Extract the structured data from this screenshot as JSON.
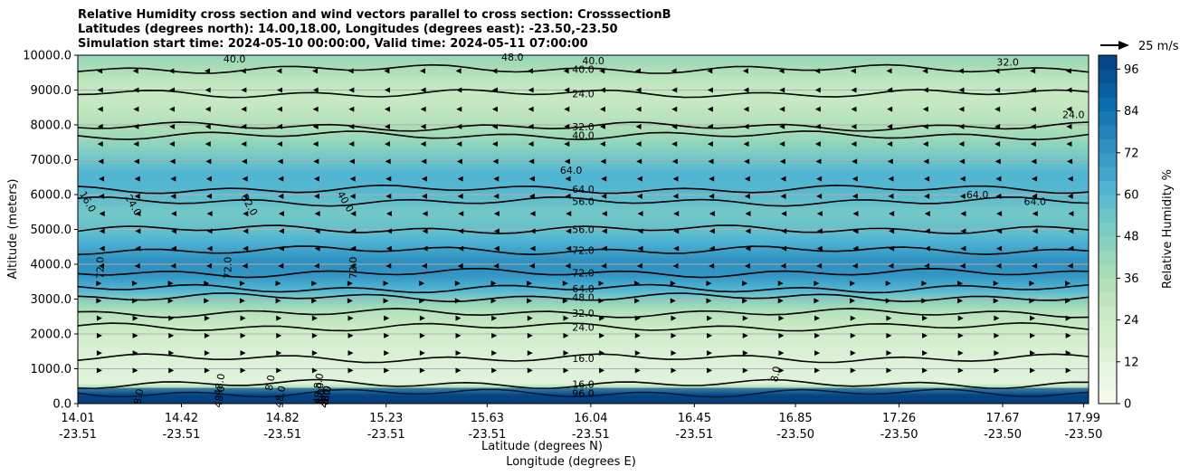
{
  "chart_data": {
    "type": "heatmap",
    "title_lines": [
      "Relative Humidity cross section and wind vectors parallel to cross section: CrosssectionB",
      "Latitudes (degrees north): 14.00,18.00, Longitudes (degrees east): -23.50,-23.50",
      "Simulation start time: 2024-05-10 00:00:00, Valid time: 2024-05-11 07:00:00"
    ],
    "ylabel": "Altitude (meters)",
    "xlabel": "Latitude (degrees N)",
    "xlabel2": "Longitude (degrees E)",
    "ylim": [
      0,
      10000
    ],
    "y_ticks": [
      "0.0",
      "1000.0",
      "2000.0",
      "3000.0",
      "4000.0",
      "5000.0",
      "6000.0",
      "7000.0",
      "8000.0",
      "9000.0",
      "10000.0"
    ],
    "x_ticks_lat": [
      "14.01",
      "14.42",
      "14.82",
      "15.23",
      "15.63",
      "16.04",
      "16.45",
      "16.85",
      "17.26",
      "17.67",
      "17.99"
    ],
    "x_ticks_lon": [
      "-23.51",
      "-23.51",
      "-23.51",
      "-23.51",
      "-23.51",
      "-23.51",
      "-23.51",
      "-23.50",
      "-23.50",
      "-23.50",
      "-23.50"
    ],
    "x_tick_positions": [
      0,
      0.1025,
      0.2025,
      0.305,
      0.405,
      0.5075,
      0.61,
      0.71,
      0.8125,
      0.915,
      0.995
    ],
    "colorbar": {
      "label": "Relative Humidity %",
      "ticks": [
        "0",
        "12",
        "24",
        "36",
        "48",
        "60",
        "72",
        "84",
        "96"
      ],
      "tick_values": [
        0,
        12,
        24,
        36,
        48,
        60,
        72,
        84,
        96
      ],
      "range": [
        0,
        100
      ],
      "colors": [
        "#f7fcf0",
        "#e0f3db",
        "#ccebc5",
        "#a8ddb5",
        "#7bccc4",
        "#4eb3d3",
        "#2b8cbe",
        "#0868ac",
        "#084081"
      ]
    },
    "rh_profile": [
      {
        "alt": 0,
        "rh": 96
      },
      {
        "alt": 250,
        "rh": 92
      },
      {
        "alt": 600,
        "rh": 12
      },
      {
        "alt": 1000,
        "rh": 14
      },
      {
        "alt": 1600,
        "rh": 17
      },
      {
        "alt": 2100,
        "rh": 24
      },
      {
        "alt": 2600,
        "rh": 32
      },
      {
        "alt": 3000,
        "rh": 48
      },
      {
        "alt": 3300,
        "rh": 62
      },
      {
        "alt": 3700,
        "rh": 72
      },
      {
        "alt": 4100,
        "rh": 74
      },
      {
        "alt": 4500,
        "rh": 66
      },
      {
        "alt": 5000,
        "rh": 56
      },
      {
        "alt": 5500,
        "rh": 52
      },
      {
        "alt": 6100,
        "rh": 60
      },
      {
        "alt": 6600,
        "rh": 62
      },
      {
        "alt": 7200,
        "rh": 50
      },
      {
        "alt": 7700,
        "rh": 40
      },
      {
        "alt": 8200,
        "rh": 32
      },
      {
        "alt": 8800,
        "rh": 26
      },
      {
        "alt": 9300,
        "rh": 30
      },
      {
        "alt": 9700,
        "rh": 38
      },
      {
        "alt": 10000,
        "rh": 42
      }
    ],
    "contour_levels": [
      {
        "alt": 300,
        "label": "96.0"
      },
      {
        "alt": 560,
        "label": "16.0"
      },
      {
        "alt": 1300,
        "label": "16.0"
      },
      {
        "alt": 2200,
        "label": "24.0"
      },
      {
        "alt": 2600,
        "label": "32.0"
      },
      {
        "alt": 3050,
        "label": "48.0"
      },
      {
        "alt": 3300,
        "label": "64.0"
      },
      {
        "alt": 3750,
        "label": "72.0"
      },
      {
        "alt": 4400,
        "label": "72.0"
      },
      {
        "alt": 5000,
        "label": "56.0"
      },
      {
        "alt": 5800,
        "label": "56.0"
      },
      {
        "alt": 6150,
        "label": "64.0"
      },
      {
        "alt": 7700,
        "label": "40.0"
      },
      {
        "alt": 7950,
        "label": "32.0"
      },
      {
        "alt": 8900,
        "label": "24.0"
      },
      {
        "alt": 9600,
        "label": "40.0"
      }
    ],
    "extra_contour_labels": [
      {
        "x": 0.155,
        "alt": 9900,
        "label": "40.0"
      },
      {
        "x": 0.43,
        "alt": 9950,
        "label": "48.0"
      },
      {
        "x": 0.51,
        "alt": 9850,
        "label": "40.0"
      },
      {
        "x": 0.92,
        "alt": 9800,
        "label": "32.0"
      },
      {
        "x": 0.985,
        "alt": 8300,
        "label": "24.0"
      },
      {
        "x": 0.055,
        "alt": 5700,
        "label": "24.0"
      },
      {
        "x": 0.17,
        "alt": 5700,
        "label": "32.0"
      },
      {
        "x": 0.265,
        "alt": 5800,
        "label": "40.0"
      },
      {
        "x": 0.01,
        "alt": 5800,
        "label": "16.0"
      },
      {
        "x": 0.022,
        "alt": 3900,
        "label": "72.0"
      },
      {
        "x": 0.148,
        "alt": 3900,
        "label": "72.0"
      },
      {
        "x": 0.272,
        "alt": 3900,
        "label": "72.0"
      },
      {
        "x": 0.488,
        "alt": 6700,
        "label": "64.0"
      },
      {
        "x": 0.89,
        "alt": 6000,
        "label": "64.0"
      },
      {
        "x": 0.947,
        "alt": 5800,
        "label": "64.0"
      },
      {
        "x": 0.69,
        "alt": 850,
        "label": "8.0"
      },
      {
        "x": 0.14,
        "alt": 550,
        "label": "48.0"
      },
      {
        "x": 0.19,
        "alt": 600,
        "label": "8.0"
      },
      {
        "x": 0.238,
        "alt": 650,
        "label": "8.0"
      },
      {
        "x": 0.238,
        "alt": 300,
        "label": "48.0"
      },
      {
        "x": 0.2,
        "alt": 200,
        "label": "48.0"
      },
      {
        "x": 0.14,
        "alt": 200,
        "label": "48.0"
      },
      {
        "x": 0.06,
        "alt": 200,
        "label": "8.0"
      },
      {
        "x": 0.245,
        "alt": 200,
        "label": "8.0"
      },
      {
        "x": 0.24,
        "alt": 200,
        "label": "8.0"
      },
      {
        "x": 0.245,
        "alt": 200,
        "label": "48.0"
      },
      {
        "x": 0.245,
        "alt": 200,
        "label": "48.0"
      },
      {
        "x": 0.245,
        "alt": 200,
        "label": "48.0"
      },
      {
        "x": 0.245,
        "alt": 200,
        "label": "8.0"
      },
      {
        "x": 0.245,
        "alt": 200,
        "label": "48.0"
      }
    ],
    "wind_vectors": [
      {
        "alt": 9550,
        "dir": -1,
        "speed": 6
      },
      {
        "alt": 9000,
        "dir": -1,
        "speed": 5
      },
      {
        "alt": 8450,
        "dir": -1,
        "speed": 5
      },
      {
        "alt": 7950,
        "dir": -1,
        "speed": 5
      },
      {
        "alt": 7450,
        "dir": -1,
        "speed": 5
      },
      {
        "alt": 6950,
        "dir": -1,
        "speed": 4
      },
      {
        "alt": 6450,
        "dir": -1,
        "speed": 3
      },
      {
        "alt": 5950,
        "dir": -1,
        "speed": 3
      },
      {
        "alt": 5450,
        "dir": -1,
        "speed": 2
      },
      {
        "alt": 4950,
        "dir": -1,
        "speed": 2
      },
      {
        "alt": 4450,
        "dir": -1,
        "speed": 2
      },
      {
        "alt": 3950,
        "dir": -1,
        "speed": 3
      },
      {
        "alt": 3450,
        "dir": 1,
        "speed": 2
      },
      {
        "alt": 2950,
        "dir": 1,
        "speed": 2
      },
      {
        "alt": 2450,
        "dir": 1,
        "speed": 3
      },
      {
        "alt": 1950,
        "dir": 1,
        "speed": 3
      },
      {
        "alt": 1450,
        "dir": 1,
        "speed": 3
      },
      {
        "alt": 950,
        "dir": 1,
        "speed": 3
      }
    ],
    "wind_columns": 28,
    "quiver_key": {
      "label": "25 m/s",
      "speed": 25
    }
  }
}
